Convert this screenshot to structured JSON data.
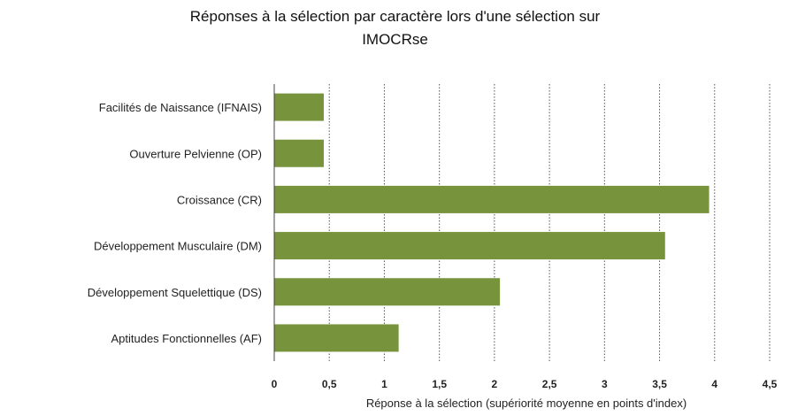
{
  "chart_data": {
    "type": "bar",
    "orientation": "horizontal",
    "title_line1": "Réponses à la sélection par caractère lors d'une sélection sur",
    "title_line2": "IMOCRse",
    "xlabel": "Réponse à la sélection (supériorité moyenne en points d'index)",
    "ylabel": "",
    "categories": [
      "Facilités de Naissance (IFNAIS)",
      "Ouverture Pelvienne (OP)",
      "Croissance (CR)",
      "Développement Musculaire (DM)",
      "Développement Squelettique (DS)",
      "Aptitudes Fonctionnelles (AF)"
    ],
    "values": [
      0.45,
      0.45,
      3.95,
      3.55,
      2.05,
      1.13
    ],
    "xlim": [
      0,
      4.5
    ],
    "ticks": [
      "0",
      "0,5",
      "1",
      "1,5",
      "2",
      "2,5",
      "3",
      "3,5",
      "4",
      "4,5"
    ],
    "grid": "vertical dotted",
    "bar_color": "#77933c",
    "legend": "none"
  }
}
